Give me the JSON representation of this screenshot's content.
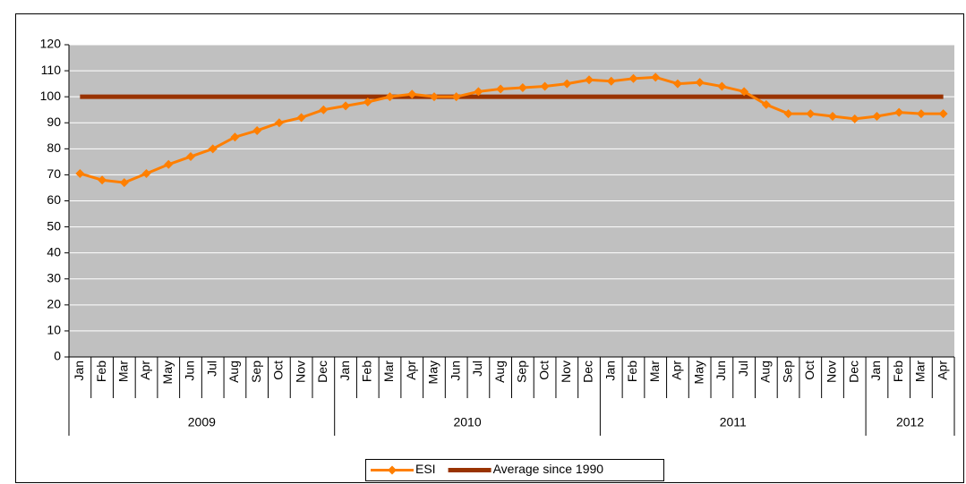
{
  "chart_data": {
    "type": "line",
    "categories": [
      "Jan",
      "Feb",
      "Mar",
      "Apr",
      "May",
      "Jun",
      "Jul",
      "Aug",
      "Sep",
      "Oct",
      "Nov",
      "Dec",
      "Jan",
      "Feb",
      "Mar",
      "Apr",
      "May",
      "Jun",
      "Jul",
      "Aug",
      "Sep",
      "Oct",
      "Nov",
      "Dec",
      "Jan",
      "Feb",
      "Mar",
      "Apr",
      "May",
      "Jun",
      "Jul",
      "Aug",
      "Sep",
      "Oct",
      "Nov",
      "Dec",
      "Jan",
      "Feb",
      "Mar",
      "Apr"
    ],
    "years": [
      "2009",
      "2010",
      "2011",
      "2012"
    ],
    "series": [
      {
        "name": "ESI",
        "color": "#ff7f00",
        "marker": "diamond",
        "values": [
          70.5,
          68,
          67,
          70.5,
          74,
          77,
          80,
          84.5,
          87,
          90,
          92,
          95,
          96.5,
          98,
          100,
          101,
          100,
          100,
          102,
          103,
          103.5,
          104,
          105,
          106.5,
          106,
          107,
          107.5,
          105,
          105.5,
          104,
          102,
          97,
          93.5,
          93.5,
          92.5,
          91.5,
          92.5,
          94,
          93.5,
          93.5
        ]
      },
      {
        "name": "Average since 1990",
        "color": "#993300",
        "marker": "none",
        "values": [
          100,
          100,
          100,
          100,
          100,
          100,
          100,
          100,
          100,
          100,
          100,
          100,
          100,
          100,
          100,
          100,
          100,
          100,
          100,
          100,
          100,
          100,
          100,
          100,
          100,
          100,
          100,
          100,
          100,
          100,
          100,
          100,
          100,
          100,
          100,
          100,
          100,
          100,
          100,
          100
        ]
      }
    ],
    "ylim": [
      0,
      120
    ],
    "yticks": [
      0,
      10,
      20,
      30,
      40,
      50,
      60,
      70,
      80,
      90,
      100,
      110,
      120
    ],
    "grid": true,
    "legend": "bottom"
  }
}
